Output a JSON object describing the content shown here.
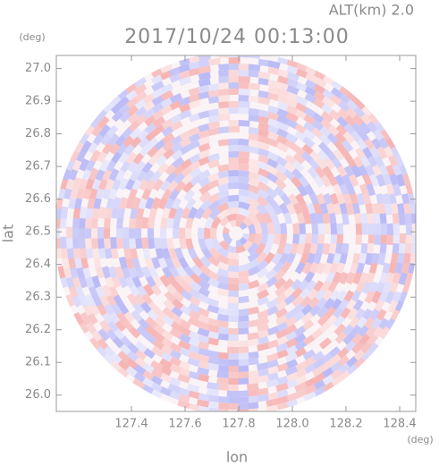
{
  "chart_data": {
    "type": "radar-ppi",
    "title": "2017/10/24 00:13:00",
    "subtitle": "ALT(km) 2.0",
    "x_label": "lon",
    "y_label": "lat",
    "x_unit": "(deg)",
    "y_unit": "(deg)",
    "xlim": [
      127.12,
      128.46
    ],
    "ylim": [
      25.95,
      27.04
    ],
    "xticks": [
      127.4,
      127.6,
      127.8,
      {
        "value": 128.0,
        "label": "128.0"
      },
      128.2,
      128.4
    ],
    "yticks": [
      {
        "value": 26.0,
        "label": "26.0"
      },
      26.1,
      26.2,
      26.3,
      26.4,
      26.5,
      26.6,
      26.7,
      26.8,
      26.9,
      {
        "value": 27.0,
        "label": "27.0"
      }
    ],
    "colors": [
      "#f4a0a0",
      "#a8a8f4"
    ]
  }
}
